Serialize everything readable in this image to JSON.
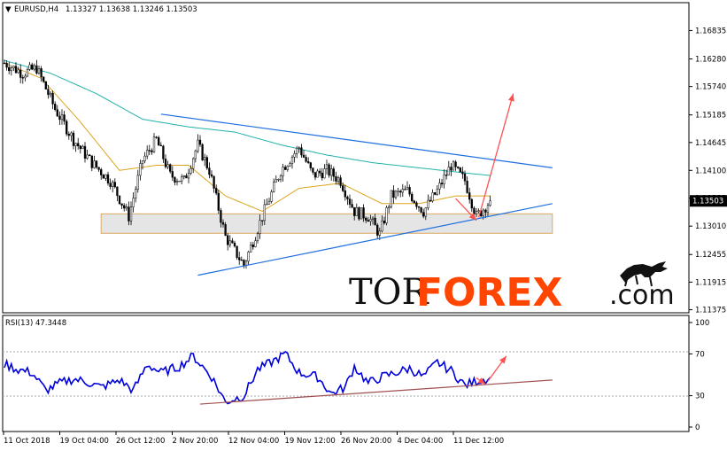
{
  "header": {
    "symbol_tf": "EURUSD,H4",
    "ohlc": "1.13327 1.13638 1.13246 1.13503"
  },
  "rsi_header": {
    "label": "RSI(13) 47.3448"
  },
  "current_price": "1.13503",
  "logo": {
    "tor": "TOR",
    "forex": "FOREX",
    "com": ".com"
  },
  "colors": {
    "candle": "#000000",
    "ma_long": "#20b2aa",
    "ma_short": "#daa520",
    "trend": "#1e6fe0",
    "forecast": "#ff5050",
    "rsi": "#0000dd",
    "rsi_trend": "#a05050",
    "zone_fill": "#e3e3e3",
    "zone_border": "#d8a050",
    "logo_forex": "#ff4500"
  },
  "chart_data": [
    {
      "type": "candlestick",
      "title": "EURUSD,H4",
      "y_tick_labels": [
        "1.16835",
        "1.16280",
        "1.15740",
        "1.15185",
        "1.14645",
        "1.14100",
        "1.13555",
        "1.13010",
        "1.12455",
        "1.11915",
        "1.11375"
      ],
      "ylim": [
        1.1135,
        1.1712
      ],
      "x_tick_labels": [
        "11 Oct 2018",
        "19 Oct 04:00",
        "26 Oct 12:00",
        "2 Nov 20:00",
        "12 Nov 04:00",
        "19 Nov 12:00",
        "26 Nov 20:00",
        "4 Dec 04:00",
        "11 Dec 12:00"
      ],
      "last_price": 1.13503,
      "close_path": [
        {
          "i": 0,
          "v": 1.162
        },
        {
          "i": 8,
          "v": 1.16
        },
        {
          "i": 14,
          "v": 1.161
        },
        {
          "i": 22,
          "v": 1.153
        },
        {
          "i": 30,
          "v": 1.147
        },
        {
          "i": 38,
          "v": 1.1425
        },
        {
          "i": 46,
          "v": 1.139
        },
        {
          "i": 54,
          "v": 1.132
        },
        {
          "i": 60,
          "v": 1.143
        },
        {
          "i": 66,
          "v": 1.147
        },
        {
          "i": 72,
          "v": 1.14
        },
        {
          "i": 78,
          "v": 1.139
        },
        {
          "i": 84,
          "v": 1.146
        },
        {
          "i": 89,
          "v": 1.141
        },
        {
          "i": 96,
          "v": 1.128
        },
        {
          "i": 104,
          "v": 1.1225
        },
        {
          "i": 112,
          "v": 1.132
        },
        {
          "i": 120,
          "v": 1.141
        },
        {
          "i": 128,
          "v": 1.1455
        },
        {
          "i": 134,
          "v": 1.14
        },
        {
          "i": 140,
          "v": 1.141
        },
        {
          "i": 146,
          "v": 1.139
        },
        {
          "i": 152,
          "v": 1.133
        },
        {
          "i": 158,
          "v": 1.132
        },
        {
          "i": 163,
          "v": 1.1285
        },
        {
          "i": 168,
          "v": 1.136
        },
        {
          "i": 175,
          "v": 1.137
        },
        {
          "i": 182,
          "v": 1.133
        },
        {
          "i": 188,
          "v": 1.137
        },
        {
          "i": 194,
          "v": 1.142
        },
        {
          "i": 200,
          "v": 1.139
        },
        {
          "i": 205,
          "v": 1.132
        },
        {
          "i": 211,
          "v": 1.135
        }
      ],
      "ma_long": [
        {
          "i": 0,
          "v": 1.1625
        },
        {
          "i": 20,
          "v": 1.16
        },
        {
          "i": 40,
          "v": 1.156
        },
        {
          "i": 60,
          "v": 1.151
        },
        {
          "i": 80,
          "v": 1.1495
        },
        {
          "i": 100,
          "v": 1.1485
        },
        {
          "i": 120,
          "v": 1.146
        },
        {
          "i": 140,
          "v": 1.144
        },
        {
          "i": 160,
          "v": 1.1425
        },
        {
          "i": 180,
          "v": 1.1415
        },
        {
          "i": 200,
          "v": 1.1405
        },
        {
          "i": 211,
          "v": 1.14
        }
      ],
      "ma_short": [
        {
          "i": 0,
          "v": 1.162
        },
        {
          "i": 16,
          "v": 1.159
        },
        {
          "i": 32,
          "v": 1.151
        },
        {
          "i": 50,
          "v": 1.141
        },
        {
          "i": 66,
          "v": 1.142
        },
        {
          "i": 80,
          "v": 1.142
        },
        {
          "i": 96,
          "v": 1.136
        },
        {
          "i": 112,
          "v": 1.133
        },
        {
          "i": 128,
          "v": 1.1375
        },
        {
          "i": 146,
          "v": 1.1385
        },
        {
          "i": 164,
          "v": 1.1345
        },
        {
          "i": 180,
          "v": 1.1345
        },
        {
          "i": 196,
          "v": 1.136
        },
        {
          "i": 211,
          "v": 1.136
        }
      ],
      "trendlines": [
        {
          "name": "upper",
          "from": {
            "i": 68,
            "v": 1.152
          },
          "to": {
            "i": 238,
            "v": 1.1415
          }
        },
        {
          "name": "lower",
          "from": {
            "i": 84,
            "v": 1.1205
          },
          "to": {
            "i": 238,
            "v": 1.1345
          }
        }
      ],
      "support_zone": {
        "from_i": 42,
        "to_i": 238,
        "low": 1.1287,
        "high": 1.1325
      },
      "forecast": [
        {
          "from": {
            "i": 196,
            "v": 1.1355
          },
          "to": {
            "i": 205,
            "v": 1.1312
          }
        },
        {
          "from": {
            "i": 206,
            "v": 1.1318
          },
          "to": {
            "i": 221,
            "v": 1.156
          }
        }
      ]
    },
    {
      "type": "line",
      "title": "RSI(13) 47.3448",
      "y_tick_labels": [
        "100",
        "70",
        "30",
        "0"
      ],
      "ylim": [
        0,
        100
      ],
      "last_value": 47.3448,
      "series": [
        {
          "values_path": [
            {
              "i": 0,
              "v": 60
            },
            {
              "i": 6,
              "v": 55
            },
            {
              "i": 12,
              "v": 52
            },
            {
              "i": 18,
              "v": 35
            },
            {
              "i": 24,
              "v": 42
            },
            {
              "i": 30,
              "v": 46
            },
            {
              "i": 36,
              "v": 43
            },
            {
              "i": 42,
              "v": 38
            },
            {
              "i": 50,
              "v": 45
            },
            {
              "i": 56,
              "v": 35
            },
            {
              "i": 62,
              "v": 60
            },
            {
              "i": 68,
              "v": 52
            },
            {
              "i": 76,
              "v": 58
            },
            {
              "i": 82,
              "v": 68
            },
            {
              "i": 90,
              "v": 48
            },
            {
              "i": 96,
              "v": 24
            },
            {
              "i": 104,
              "v": 30
            },
            {
              "i": 110,
              "v": 55
            },
            {
              "i": 116,
              "v": 62
            },
            {
              "i": 122,
              "v": 70
            },
            {
              "i": 128,
              "v": 52
            },
            {
              "i": 136,
              "v": 48
            },
            {
              "i": 142,
              "v": 32
            },
            {
              "i": 148,
              "v": 38
            },
            {
              "i": 152,
              "v": 58
            },
            {
              "i": 158,
              "v": 42
            },
            {
              "i": 164,
              "v": 48
            },
            {
              "i": 170,
              "v": 52
            },
            {
              "i": 176,
              "v": 56
            },
            {
              "i": 182,
              "v": 48
            },
            {
              "i": 188,
              "v": 62
            },
            {
              "i": 194,
              "v": 54
            },
            {
              "i": 200,
              "v": 40
            },
            {
              "i": 205,
              "v": 44
            },
            {
              "i": 211,
              "v": 47
            }
          ]
        }
      ],
      "trendline": {
        "from": {
          "i": 85,
          "v": 22
        },
        "to": {
          "i": 238,
          "v": 45
        }
      },
      "forecast": [
        {
          "from": {
            "i": 205,
            "v": 47
          },
          "to": {
            "i": 209,
            "v": 41
          }
        },
        {
          "from": {
            "i": 210,
            "v": 44
          },
          "to": {
            "i": 218,
            "v": 68
          }
        }
      ]
    }
  ]
}
